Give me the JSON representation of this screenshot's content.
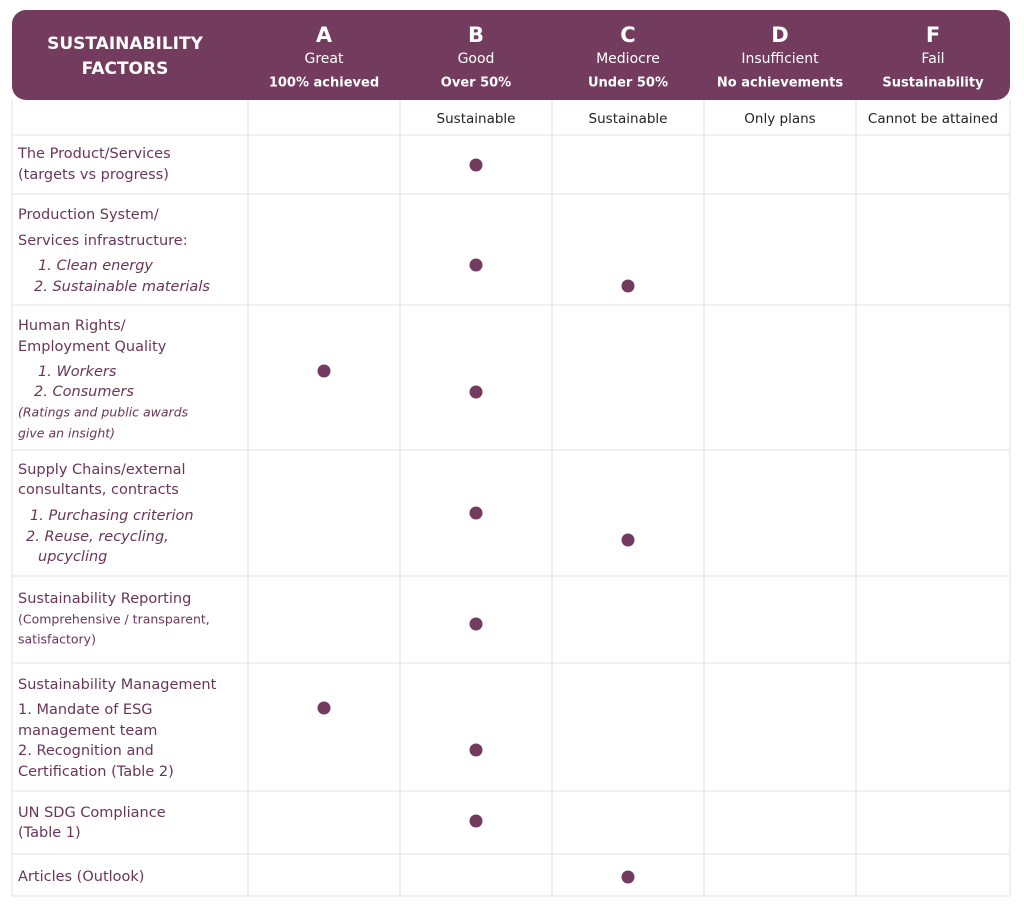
{
  "header": {
    "title": [
      "SUSTAINABILITY",
      "FACTORS"
    ],
    "grades": [
      {
        "letter": "A",
        "label": "Great",
        "note": "100% achieved"
      },
      {
        "letter": "B",
        "label": "Good",
        "note": "Over 50%",
        "sub": "Sustainable"
      },
      {
        "letter": "C",
        "label": "Mediocre",
        "note": "Under 50%",
        "sub": "Sustainable"
      },
      {
        "letter": "D",
        "label": "Insufficient",
        "note": "No achievements",
        "sub": "Only plans"
      },
      {
        "letter": "F",
        "label": "Fail",
        "note": "Sustainability",
        "sub": "Cannot be attained"
      }
    ]
  },
  "rows": [
    {
      "lines": [
        "The Product/Services",
        "(targets vs progress)"
      ]
    },
    {
      "lines": [
        "Production System/",
        "Services infrastructure:",
        "1. Clean energy",
        "2. Sustainable materials"
      ]
    },
    {
      "lines": [
        "Human Rights/",
        "Employment Quality",
        "1. Workers",
        "2. Consumers",
        "(Ratings and public awards",
        "give an insight)"
      ]
    },
    {
      "lines": [
        "Supply Chains/external",
        "consultants, contracts",
        "1. Purchasing  criterion",
        "2. Reuse, recycling,",
        "upcycling"
      ]
    },
    {
      "lines": [
        "Sustainability Reporting",
        "(Comprehensive / transparent,",
        "satisfactory)"
      ]
    },
    {
      "lines": [
        "Sustainability Management",
        "1. Mandate of ESG",
        "management team",
        "2. Recognition and",
        "Certification (Table 2)"
      ]
    },
    {
      "lines": [
        "UN SDG Compliance",
        "(Table 1)"
      ]
    },
    {
      "lines": [
        "Articles (Outlook)"
      ]
    }
  ]
}
